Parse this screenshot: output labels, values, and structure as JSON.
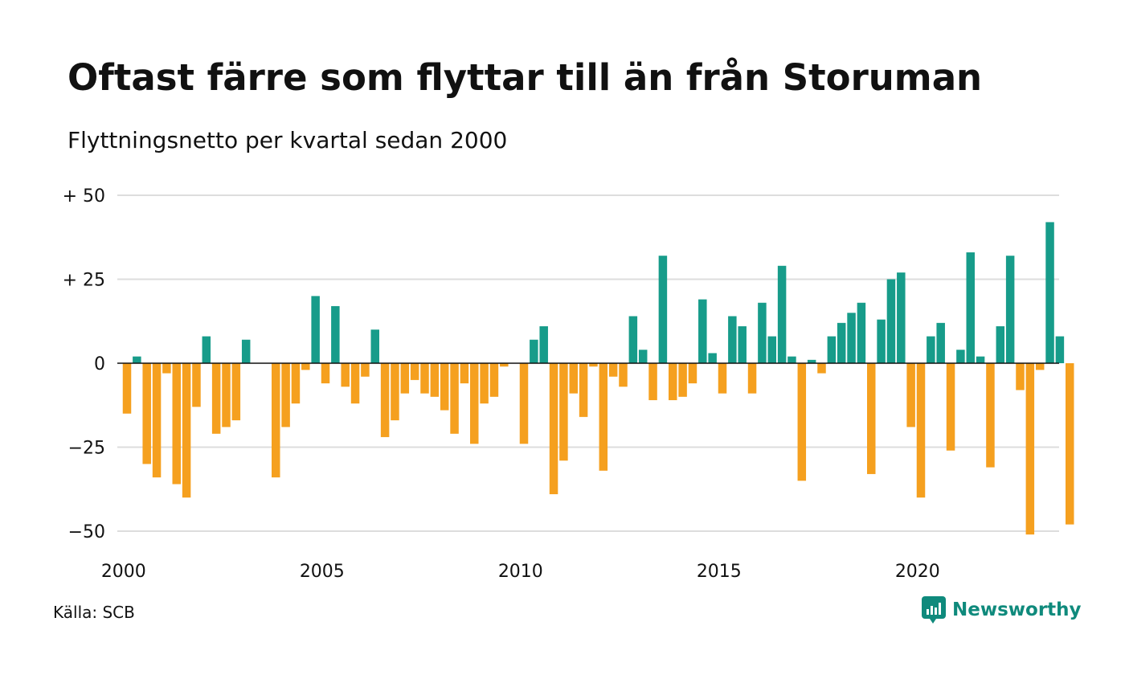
{
  "header": {
    "title": "Oftast färre som flyttar till än från Storuman",
    "subtitle": "Flyttningsnetto per kvartal sedan 2000"
  },
  "footer": {
    "source": "Källa: SCB",
    "brand": "Newsworthy"
  },
  "colors": {
    "positive": "#179c8a",
    "negative": "#f5a01f",
    "grid": "#dddddd",
    "zero": "#111111",
    "brand": "#0f8a7c"
  },
  "chart_data": {
    "type": "bar",
    "title": "Oftast färre som flyttar till än från Storuman",
    "subtitle": "Flyttningsnetto per kvartal sedan 2000",
    "xlabel": "",
    "ylabel": "",
    "ylim": [
      -50,
      50
    ],
    "yticks": [
      50,
      25,
      0,
      -25,
      -50
    ],
    "ytick_labels": [
      "+ 50",
      "+ 25",
      "0",
      "−25",
      "−50"
    ],
    "xticks": [
      2000,
      2005,
      2010,
      2015,
      2020
    ],
    "xtick_labels": [
      "2000",
      "2005",
      "2010",
      "2015",
      "2020"
    ],
    "grid": true,
    "x_start": "2000 Q1",
    "values": [
      -15,
      2,
      -30,
      -34,
      -3,
      -36,
      -40,
      -13,
      8,
      -21,
      -19,
      -17,
      7,
      0,
      0,
      -34,
      -19,
      -12,
      -2,
      20,
      -6,
      17,
      -7,
      -12,
      -4,
      10,
      -22,
      -17,
      -9,
      -5,
      -9,
      -10,
      -14,
      -21,
      -6,
      -24,
      -12,
      -10,
      -1,
      0,
      -24,
      7,
      11,
      -39,
      -29,
      -9,
      -16,
      -1,
      -32,
      -4,
      -7,
      14,
      4,
      -11,
      32,
      -11,
      -10,
      -6,
      19,
      3,
      -9,
      14,
      11,
      -9,
      18,
      8,
      29,
      2,
      -35,
      1,
      -3,
      8,
      12,
      15,
      18,
      -33,
      13,
      25,
      27,
      -19,
      -40,
      8,
      12,
      -26,
      4,
      33,
      2,
      -31,
      11,
      32,
      -8,
      -51,
      -2,
      42,
      8,
      -48
    ]
  }
}
